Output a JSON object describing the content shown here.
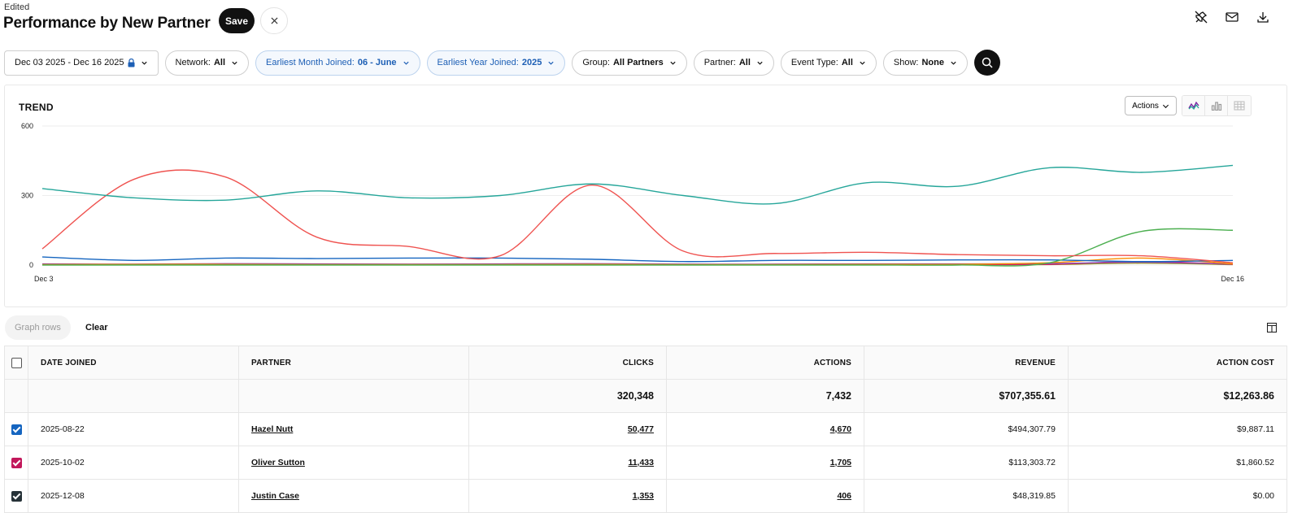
{
  "header": {
    "status": "Edited",
    "title": "Performance by New Partner",
    "save_label": "Save",
    "icons": [
      "unpin-icon",
      "mail-icon",
      "download-icon"
    ]
  },
  "filters": {
    "date_range": "Dec 03 2025 - Dec 16 2025",
    "network_label": "Network:",
    "network_value": "All",
    "month_label": "Earliest Month Joined:",
    "month_value": "06 - June",
    "year_label": "Earliest Year Joined:",
    "year_value": "2025",
    "group_label": "Group:",
    "group_value": "All Partners",
    "partner_label": "Partner:",
    "partner_value": "All",
    "event_label": "Event Type:",
    "event_value": "All",
    "show_label": "Show:",
    "show_value": "None"
  },
  "trend": {
    "title": "TREND",
    "actions_label": "Actions"
  },
  "chart_data": {
    "type": "line",
    "title": "TREND",
    "x": [
      1,
      2,
      3,
      4,
      5,
      6,
      7,
      8,
      9,
      10,
      11,
      12,
      13,
      14
    ],
    "x_tick_labels": [
      "Dec 3",
      "Dec 16"
    ],
    "ylim": [
      0,
      600
    ],
    "y_ticks": [
      0,
      300,
      600
    ],
    "grid": true,
    "series": [
      {
        "name": "Teal",
        "color": "#26a69a",
        "values": [
          330,
          290,
          280,
          320,
          290,
          300,
          350,
          300,
          265,
          355,
          340,
          420,
          400,
          430
        ]
      },
      {
        "name": "Red",
        "color": "#ef5350",
        "values": [
          70,
          370,
          380,
          120,
          80,
          40,
          345,
          60,
          50,
          55,
          45,
          40,
          40,
          10
        ]
      },
      {
        "name": "Green",
        "color": "#4caf50",
        "values": [
          0,
          0,
          0,
          0,
          0,
          0,
          0,
          0,
          0,
          0,
          0,
          10,
          145,
          150
        ]
      },
      {
        "name": "Blue",
        "color": "#1565c0",
        "values": [
          35,
          20,
          30,
          28,
          30,
          30,
          25,
          15,
          20,
          20,
          22,
          22,
          15,
          20
        ]
      },
      {
        "name": "Orange",
        "color": "#fb8c00",
        "values": [
          2,
          3,
          3,
          2,
          2,
          2,
          3,
          2,
          2,
          3,
          3,
          10,
          30,
          5
        ]
      },
      {
        "name": "Purple",
        "color": "#8e44ad",
        "values": [
          5,
          4,
          6,
          5,
          4,
          5,
          6,
          4,
          4,
          5,
          5,
          6,
          12,
          4
        ]
      },
      {
        "name": "Pink",
        "color": "#d81b60",
        "values": [
          3,
          2,
          3,
          2,
          2,
          3,
          2,
          2,
          2,
          2,
          3,
          3,
          15,
          3
        ]
      },
      {
        "name": "Olive",
        "color": "#9e9d24",
        "values": [
          1,
          2,
          2,
          1,
          2,
          1,
          2,
          1,
          2,
          1,
          2,
          2,
          8,
          2
        ]
      }
    ]
  },
  "controls": {
    "graph_rows_label": "Graph rows",
    "clear_label": "Clear"
  },
  "table": {
    "headers": [
      "DATE JOINED",
      "PARTNER",
      "CLICKS",
      "ACTIONS",
      "REVENUE",
      "ACTION COST"
    ],
    "totals": [
      "320,348",
      "7,432",
      "$707,355.61",
      "$12,263.86"
    ],
    "rows": [
      {
        "date": "2025-08-22",
        "partner": "Hazel Nutt",
        "clicks": "50,477",
        "actions": "4,670",
        "revenue": "$494,307.79",
        "cost": "$9,887.11",
        "checkbox_color": "#1565c0"
      },
      {
        "date": "2025-10-02",
        "partner": "Oliver Sutton",
        "clicks": "11,433",
        "actions": "1,705",
        "revenue": "$113,303.72",
        "cost": "$1,860.52",
        "checkbox_color": "#c2185b"
      },
      {
        "date": "2025-12-08",
        "partner": "Justin Case",
        "clicks": "1,353",
        "actions": "406",
        "revenue": "$48,319.85",
        "cost": "$0.00",
        "checkbox_color": "#263238"
      }
    ]
  }
}
